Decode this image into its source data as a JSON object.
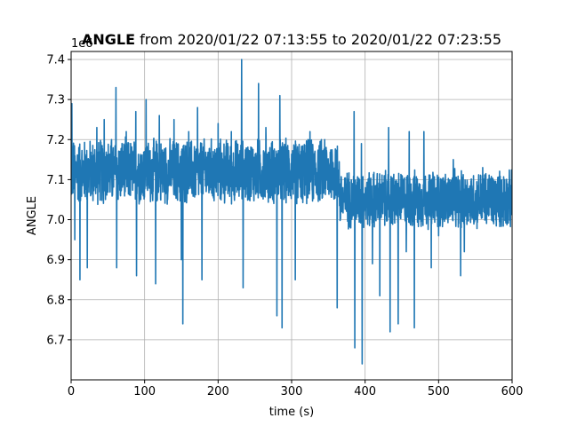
{
  "title": {
    "bold": "ANGLE",
    "rest": " from 2020/01/22 07:13:55 to 2020/01/22 07:23:55"
  },
  "offset_text": "1e6",
  "colors": {
    "series": "#1f77b4",
    "grid": "#b0b0b0",
    "axes": "#000000"
  },
  "chart_data": {
    "type": "line",
    "title": "ANGLE from 2020/01/22 07:13:55 to 2020/01/22 07:23:55",
    "xlabel": "time (s)",
    "ylabel": "ANGLE",
    "y_scale_multiplier": "1e6",
    "xlim": [
      0,
      600
    ],
    "ylim": [
      6.6,
      7.42
    ],
    "grid": true,
    "x_ticks": [
      "0",
      "100",
      "200",
      "300",
      "400",
      "500",
      "600"
    ],
    "x_tick_values": [
      0,
      100,
      200,
      300,
      400,
      500,
      600
    ],
    "y_ticks": [
      "6.7",
      "6.8",
      "6.9",
      "7.0",
      "7.1",
      "7.2",
      "7.3",
      "7.4"
    ],
    "y_tick_values": [
      6.7,
      6.8,
      6.9,
      7.0,
      7.1,
      7.2,
      7.3,
      7.4
    ],
    "series": [
      {
        "name": "ANGLE",
        "description_of_trend": "noisy signal around 7.12 until ~365 s, then around 7.05 to 600 s",
        "envelope_before": {
          "x": [
            0,
            365
          ],
          "center": 7.12,
          "band": [
            7.04,
            7.22
          ]
        },
        "envelope_after": {
          "x": [
            365,
            600
          ],
          "center": 7.05,
          "band": [
            6.97,
            7.13
          ]
        },
        "spikes": [
          [
            1,
            7.29
          ],
          [
            5,
            6.95
          ],
          [
            12,
            6.85
          ],
          [
            22,
            6.88
          ],
          [
            35,
            7.23
          ],
          [
            45,
            7.25
          ],
          [
            55,
            7.2
          ],
          [
            61,
            7.33
          ],
          [
            62,
            6.88
          ],
          [
            75,
            7.22
          ],
          [
            88,
            7.27
          ],
          [
            89,
            6.86
          ],
          [
            102,
            7.3
          ],
          [
            115,
            6.84
          ],
          [
            120,
            7.26
          ],
          [
            140,
            7.25
          ],
          [
            150,
            6.9
          ],
          [
            152,
            6.74
          ],
          [
            160,
            7.22
          ],
          [
            172,
            7.28
          ],
          [
            178,
            6.85
          ],
          [
            200,
            7.24
          ],
          [
            218,
            7.22
          ],
          [
            232,
            7.4
          ],
          [
            234,
            6.83
          ],
          [
            255,
            7.34
          ],
          [
            265,
            7.23
          ],
          [
            280,
            6.76
          ],
          [
            284,
            7.31
          ],
          [
            287,
            6.73
          ],
          [
            305,
            6.85
          ],
          [
            325,
            7.22
          ],
          [
            345,
            7.2
          ],
          [
            362,
            6.78
          ],
          [
            385,
            7.27
          ],
          [
            386,
            6.68
          ],
          [
            395,
            7.19
          ],
          [
            396,
            6.64
          ],
          [
            410,
            6.89
          ],
          [
            420,
            6.81
          ],
          [
            432,
            7.23
          ],
          [
            434,
            6.72
          ],
          [
            445,
            6.74
          ],
          [
            456,
            6.92
          ],
          [
            460,
            7.22
          ],
          [
            467,
            6.73
          ],
          [
            480,
            7.22
          ],
          [
            490,
            6.88
          ],
          [
            500,
            6.96
          ],
          [
            520,
            7.15
          ],
          [
            530,
            6.86
          ],
          [
            535,
            6.92
          ],
          [
            560,
            7.13
          ],
          [
            575,
            6.99
          ],
          [
            590,
            7.1
          ]
        ]
      }
    ]
  }
}
